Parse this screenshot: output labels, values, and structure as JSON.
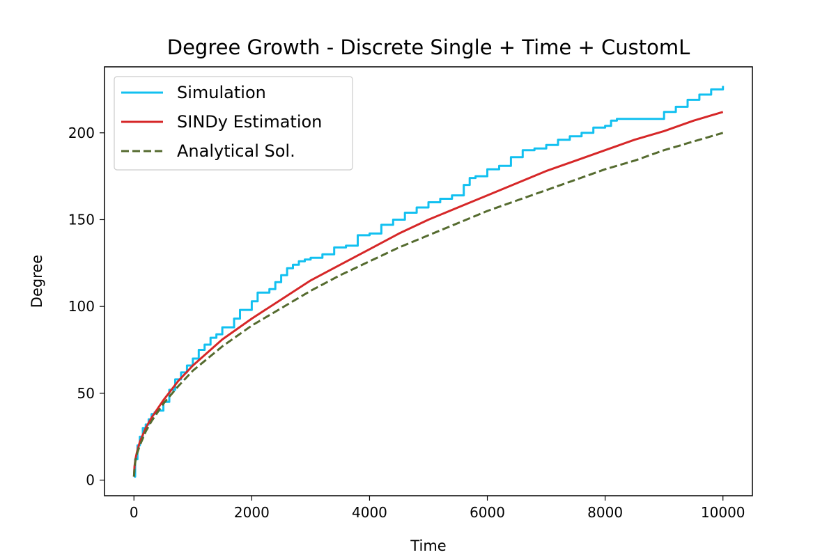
{
  "chart_data": {
    "type": "line",
    "title": "Degree Growth - Discrete Single + Time + CustomL",
    "xlabel": "Time",
    "ylabel": "Degree",
    "xlim": [
      -500,
      10500
    ],
    "ylim": [
      -9,
      238
    ],
    "xticks": [
      0,
      2000,
      4000,
      6000,
      8000,
      10000
    ],
    "yticks": [
      0,
      50,
      100,
      150,
      200
    ],
    "grid": false,
    "legend_position": "upper left",
    "series": [
      {
        "name": "Simulation",
        "color": "#12c0f0",
        "style": "solid",
        "step": true,
        "x": [
          0,
          20,
          60,
          100,
          150,
          200,
          250,
          300,
          350,
          400,
          500,
          600,
          700,
          800,
          900,
          1000,
          1100,
          1200,
          1300,
          1400,
          1500,
          1600,
          1700,
          1800,
          1900,
          2000,
          2100,
          2200,
          2300,
          2400,
          2500,
          2600,
          2700,
          2800,
          2900,
          3000,
          3200,
          3400,
          3600,
          3800,
          4000,
          4200,
          4400,
          4600,
          4800,
          5000,
          5200,
          5400,
          5600,
          5700,
          5800,
          6000,
          6200,
          6400,
          6600,
          6800,
          7000,
          7200,
          7400,
          7600,
          7800,
          8000,
          8100,
          8200,
          8400,
          8600,
          8800,
          9000,
          9200,
          9400,
          9600,
          9800,
          10000
        ],
        "y": [
          2,
          12,
          20,
          25,
          30,
          32,
          35,
          38,
          39,
          40,
          45,
          52,
          58,
          62,
          66,
          70,
          75,
          78,
          82,
          84,
          88,
          88,
          93,
          98,
          98,
          103,
          108,
          108,
          110,
          114,
          118,
          122,
          124,
          126,
          127,
          128,
          130,
          134,
          135,
          141,
          142,
          147,
          150,
          154,
          157,
          160,
          162,
          164,
          170,
          174,
          175,
          179,
          181,
          186,
          190,
          191,
          193,
          196,
          198,
          200,
          203,
          204,
          207,
          208,
          208,
          208,
          208,
          212,
          215,
          219,
          222,
          225,
          227
        ]
      },
      {
        "name": "SINDy Estimation",
        "color": "#d62728",
        "style": "solid",
        "step": false,
        "x": [
          0,
          10,
          25,
          50,
          100,
          200,
          300,
          500,
          750,
          1000,
          1500,
          2000,
          2500,
          3000,
          3500,
          4000,
          4500,
          5000,
          5500,
          6000,
          6500,
          7000,
          7500,
          8000,
          8500,
          9000,
          9500,
          10000
        ],
        "y": [
          2,
          8,
          12,
          16,
          22,
          30,
          36,
          46,
          57,
          66,
          81,
          93,
          104,
          115,
          124,
          133,
          142,
          150,
          157,
          164,
          171,
          178,
          184,
          190,
          196,
          201,
          207,
          212
        ]
      },
      {
        "name": "Analytical Sol.",
        "color": "#556b2f",
        "style": "dashed",
        "step": false,
        "x": [
          0,
          10,
          25,
          50,
          100,
          200,
          300,
          500,
          750,
          1000,
          1500,
          2000,
          2500,
          3000,
          3500,
          4000,
          4500,
          5000,
          5500,
          6000,
          6500,
          7000,
          7500,
          8000,
          8500,
          9000,
          9500,
          10000
        ],
        "y": [
          2,
          7,
          11,
          15,
          20,
          28,
          34,
          44,
          54,
          63,
          77,
          89,
          99,
          109,
          118,
          126,
          134,
          141,
          148,
          155,
          161,
          167,
          173,
          179,
          184,
          190,
          195,
          200
        ]
      }
    ]
  }
}
